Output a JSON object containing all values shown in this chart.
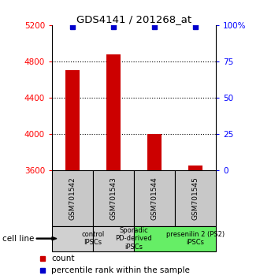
{
  "title": "GDS4141 / 201268_at",
  "samples": [
    "GSM701542",
    "GSM701543",
    "GSM701544",
    "GSM701545"
  ],
  "counts": [
    4700,
    4880,
    4000,
    3650
  ],
  "percentiles": [
    99,
    99,
    99,
    99
  ],
  "ylim_left": [
    3600,
    5200
  ],
  "ylim_right": [
    0,
    100
  ],
  "yticks_left": [
    3600,
    4000,
    4400,
    4800,
    5200
  ],
  "yticks_right": [
    0,
    25,
    50,
    75,
    100
  ],
  "ytick_labels_right": [
    "0",
    "25",
    "50",
    "75",
    "100%"
  ],
  "bar_color": "#cc0000",
  "percentile_color": "#0000cc",
  "grid_color": "#000000",
  "cell_line_label": "cell line",
  "groups": [
    {
      "label": "control\nIPSCs",
      "start": 0,
      "end": 1,
      "color": "#d0d0d0"
    },
    {
      "label": "Sporadic\nPD-derived\niPSCs",
      "start": 1,
      "end": 2,
      "color": "#d0d0d0"
    },
    {
      "label": "presenilin 2 (PS2)\niPSCs",
      "start": 2,
      "end": 4,
      "color": "#66ee66"
    }
  ],
  "legend_count_color": "#cc0000",
  "legend_percentile_color": "#0000cc",
  "sample_box_color": "#c8c8c8",
  "bar_width": 0.35
}
